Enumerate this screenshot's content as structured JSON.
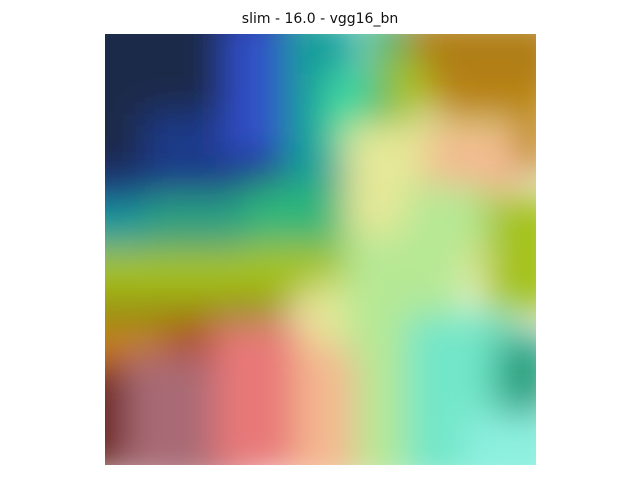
{
  "chart_data": {
    "type": "heatmap",
    "title": "slim - 16.0 - vgg16_bn",
    "xlabel": "",
    "ylabel": "",
    "axes_visible": false,
    "grid": false,
    "colorbar": false,
    "palette": {
      "navy": "#1c2a4a",
      "deep_blue": "#1e3a8a",
      "blue": "#3250c8",
      "teal": "#129e9a",
      "mint": "#3edca0",
      "green": "#2fb67a",
      "yellow_green": "#a4c21a",
      "olive": "#9a8f10",
      "mustard": "#c08a10",
      "brown_gold": "#b07e18",
      "orange": "#d2781a",
      "rust": "#b4420a",
      "dark_red": "#6a2218",
      "mauve": "#a86a74",
      "pink": "#e87878",
      "peach": "#f4b890",
      "light_yellow": "#e6e898",
      "pale_green": "#b6e894",
      "aqua": "#72e6c8",
      "cyan": "#8ef0e0",
      "sea_green": "#2aa080"
    }
  }
}
